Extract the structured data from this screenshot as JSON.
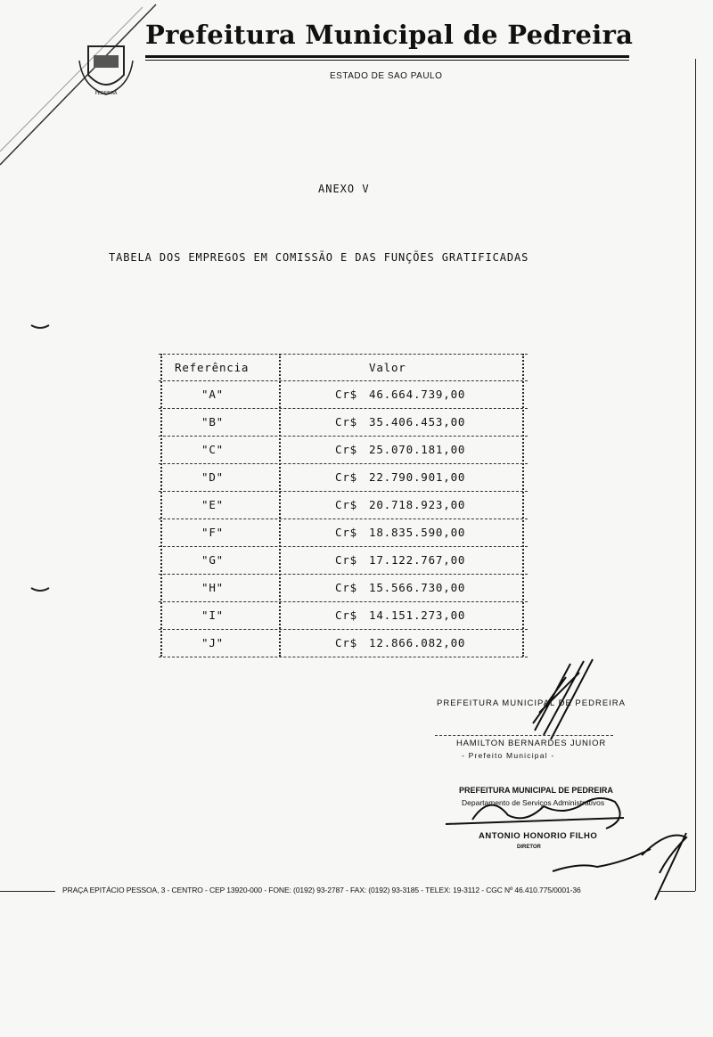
{
  "letterhead": {
    "title": "Prefeitura Municipal de Pedreira",
    "subtitle": "ESTADO DE SAO PAULO",
    "crest_text": "PEDREIRA"
  },
  "document": {
    "annex": "ANEXO V",
    "heading": "TABELA DOS EMPREGOS EM COMISSÃO E DAS FUNÇÕES GRATIFICADAS"
  },
  "table": {
    "headers": [
      "Referência",
      "Valor"
    ],
    "currency": "Cr$",
    "rows": [
      {
        "ref": "\"A\"",
        "value": "46.664.739,00"
      },
      {
        "ref": "\"B\"",
        "value": "35.406.453,00"
      },
      {
        "ref": "\"C\"",
        "value": "25.070.181,00"
      },
      {
        "ref": "\"D\"",
        "value": "22.790.901,00"
      },
      {
        "ref": "\"E\"",
        "value": "20.718.923,00"
      },
      {
        "ref": "\"F\"",
        "value": "18.835.590,00"
      },
      {
        "ref": "\"G\"",
        "value": "17.122.767,00"
      },
      {
        "ref": "\"H\"",
        "value": "15.566.730,00"
      },
      {
        "ref": "\"I\"",
        "value": "14.151.273,00"
      },
      {
        "ref": "\"J\"",
        "value": "12.866.082,00"
      }
    ]
  },
  "signatures": {
    "mayor_stamp": "PREFEITURA MUNICIPAL DE PEDREIRA",
    "mayor_name": "HAMILTON BERNARDES JUNIOR",
    "mayor_title": "- Prefeito Municipal -",
    "dept_stamp": "PREFEITURA MUNICIPAL DE PEDREIRA",
    "dept_name": "Departamento de Serviços Administrativos",
    "director_name": "ANTONIO HONORIO FILHO",
    "director_title": "DIRETOR"
  },
  "footer": "PRAÇA EPITÁCIO PESSOA, 3 - CENTRO - CEP 13920-000 - FONE: (0192) 93-2787 - FAX: (0192) 93-3185 - TELEX: 19-3112 - CGC Nº 46.410.775/0001-36"
}
